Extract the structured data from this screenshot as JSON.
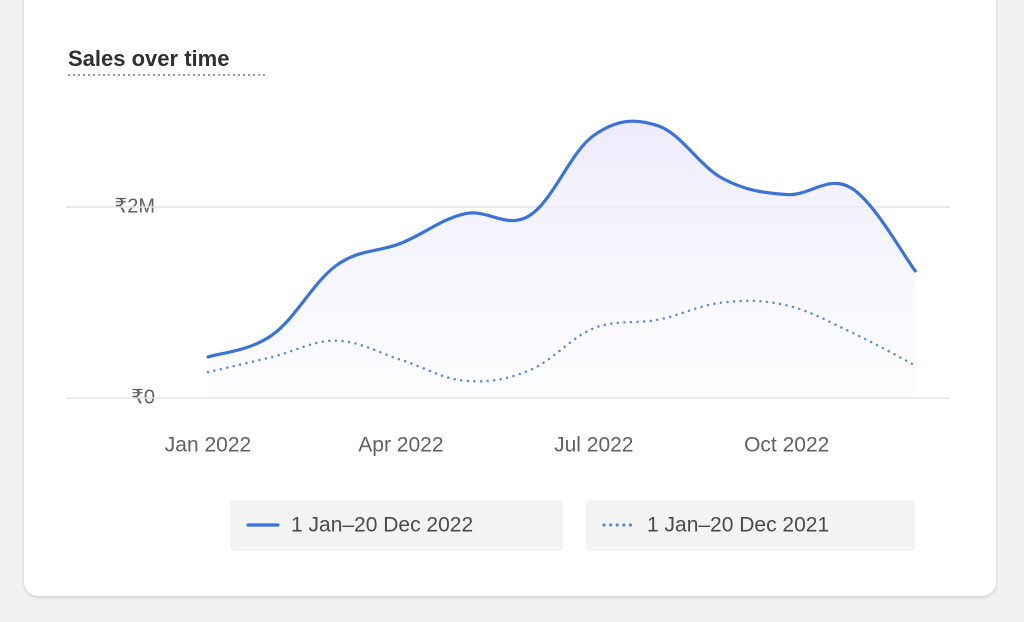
{
  "chart_data": {
    "type": "line",
    "title": "Sales over time",
    "categories": [
      "Jan 2022",
      null,
      null,
      "Apr 2022",
      null,
      null,
      "Jul 2022",
      null,
      null,
      "Oct 2022",
      null,
      null
    ],
    "series": [
      {
        "name": "1 Jan–20 Dec 2022",
        "color": "#3b73d6",
        "line_style": "solid",
        "values": [
          430000,
          660000,
          1390000,
          1620000,
          1930000,
          1910000,
          2750000,
          2850000,
          2300000,
          2130000,
          2200000,
          1330000
        ]
      },
      {
        "name": "1 Jan–20 Dec 2021",
        "color": "#5b8fd0",
        "line_style": "dotted",
        "values": [
          270000,
          430000,
          600000,
          400000,
          180000,
          290000,
          730000,
          820000,
          1000000,
          970000,
          690000,
          340000
        ]
      }
    ],
    "ylim": [
      0,
      3000000
    ],
    "yticks": [
      {
        "value": 0,
        "label": "₹0"
      },
      {
        "value": 2000000,
        "label": "₹2M"
      }
    ],
    "grid": true
  }
}
